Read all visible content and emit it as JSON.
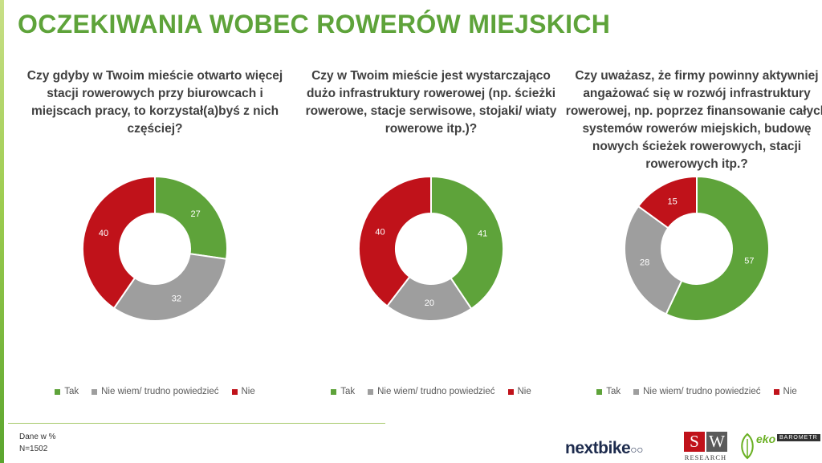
{
  "page": {
    "title": "OCZEKIWANIA WOBEC ROWERÓW MIEJSKICH",
    "footnote_line1": "Dane w %",
    "footnote_line2": "N=1502"
  },
  "legend": {
    "tak": "Tak",
    "nie_wiem": "Nie wiem/ trudno powiedzieć",
    "nie": "Nie"
  },
  "logos": {
    "nextbike": "nextbike",
    "sw_s": "S",
    "sw_w": "W",
    "sw_research": "RESEARCH",
    "eko": "eko",
    "eko_barometr": "BAROMETR"
  },
  "colors": {
    "tak": "#5ea33a",
    "nie_wiem": "#9e9e9e",
    "nie": "#c0121a",
    "title": "#5ea33a"
  },
  "chart_data": [
    {
      "type": "pie",
      "variant": "donut",
      "title": "Czy gdyby w Twoim mieście otwarto więcej stacji rowerowych przy biurowcach i miejscach pracy, to korzystał(a)byś z nich częściej?",
      "categories": [
        "Tak",
        "Nie wiem/ trudno powiedzieć",
        "Nie"
      ],
      "values": [
        27,
        32,
        40
      ],
      "legend_position": "bottom"
    },
    {
      "type": "pie",
      "variant": "donut",
      "title": "Czy w Twoim mieście jest wystarczająco dużo infrastruktury rowerowej (np. ścieżki rowerowe, stacje serwisowe, stojaki/ wiaty rowerowe itp.)?",
      "categories": [
        "Tak",
        "Nie wiem/ trudno powiedzieć",
        "Nie"
      ],
      "values": [
        41,
        20,
        40
      ],
      "legend_position": "bottom"
    },
    {
      "type": "pie",
      "variant": "donut",
      "title": "Czy uważasz, że firmy powinny aktywniej angażować się w rozwój infrastruktury rowerowej, np. poprzez finansowanie całych systemów rowerów miejskich, budowę nowych ścieżek rowerowych, stacji rowerowych itp.?",
      "categories": [
        "Tak",
        "Nie wiem/ trudno powiedzieć",
        "Nie"
      ],
      "values": [
        57,
        28,
        15
      ],
      "legend_position": "bottom"
    }
  ]
}
